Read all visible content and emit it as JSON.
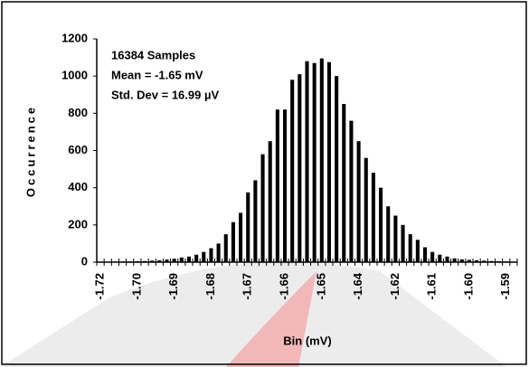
{
  "chart_data": {
    "type": "bar",
    "annotations": [
      "16384 Samples",
      "Mean = -1.65 mV",
      "Std. Dev = 16.99 µV"
    ],
    "x_label": "Bin (mV)",
    "y_label": "Occurrence",
    "categories": [
      "-1.72",
      null,
      null,
      null,
      null,
      "-1.70",
      null,
      null,
      null,
      null,
      "-1.69",
      null,
      null,
      null,
      null,
      "-1.68",
      null,
      null,
      null,
      null,
      "-1.67",
      null,
      null,
      null,
      null,
      "-1.66",
      null,
      null,
      null,
      null,
      "-1.65",
      null,
      null,
      null,
      null,
      "-1.64",
      null,
      null,
      null,
      null,
      "-1.62",
      null,
      null,
      null,
      null,
      "-1.61",
      null,
      null,
      null,
      null,
      "-1.60",
      null,
      null,
      null,
      null,
      "-1.59",
      null
    ],
    "values": [
      2,
      2,
      3,
      3,
      4,
      5,
      6,
      8,
      10,
      14,
      18,
      25,
      30,
      40,
      55,
      75,
      100,
      150,
      215,
      265,
      375,
      440,
      580,
      650,
      820,
      820,
      980,
      1010,
      1080,
      1070,
      1095,
      1075,
      1000,
      850,
      760,
      650,
      560,
      480,
      400,
      300,
      250,
      200,
      150,
      120,
      80,
      55,
      40,
      30,
      20,
      15,
      12,
      10,
      8,
      6,
      5,
      4,
      3
    ],
    "color": "#000000",
    "ylim": [
      0,
      1200
    ],
    "yticks": [
      0,
      200,
      400,
      600,
      800,
      1000,
      1200
    ],
    "grid": false
  }
}
